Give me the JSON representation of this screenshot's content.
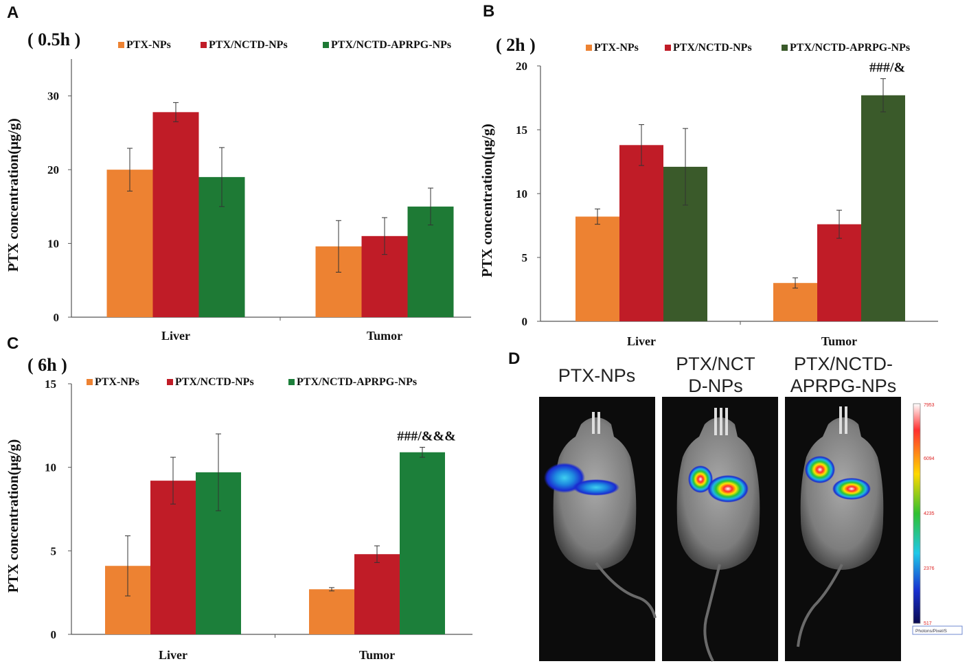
{
  "panels": [
    {
      "letter": "A"
    },
    {
      "letter": "B"
    },
    {
      "letter": "C"
    },
    {
      "letter": "D"
    }
  ],
  "legend_labels": [
    "PTX-NPs",
    "PTX/NCTD-NPs",
    "PTX/NCTD-APRPG-NPs"
  ],
  "colors": {
    "orange": "#ED8232",
    "red": "#C01C27",
    "green_a": "#1E7A35",
    "green_b": "#3A5A2A",
    "green_c": "#1C7F3A",
    "axis": "#555555",
    "text": "#111111"
  },
  "chart_data": [
    {
      "type": "bar",
      "panel": "A",
      "title": "( 0.5h )",
      "ylabel": "PTX concentration(μg/g)",
      "xlabel": "",
      "categories": [
        "Liver",
        "Tumor"
      ],
      "ylim": [
        0,
        35
      ],
      "yticks": [
        0,
        10,
        20,
        30
      ],
      "series": [
        {
          "name": "PTX-NPs",
          "values": [
            20,
            9.6
          ],
          "errors": [
            2.9,
            3.5
          ]
        },
        {
          "name": "PTX/NCTD-NPs",
          "values": [
            27.8,
            11
          ],
          "errors": [
            1.3,
            2.5
          ]
        },
        {
          "name": "PTX/NCTD-APRPG-NPs",
          "values": [
            19,
            15
          ],
          "errors": [
            4,
            2.5
          ]
        }
      ],
      "annotations": []
    },
    {
      "type": "bar",
      "panel": "B",
      "title": "( 2h )",
      "ylabel": "PTX concentration(μg/g)",
      "xlabel": "",
      "categories": [
        "Liver",
        "Tumor"
      ],
      "ylim": [
        0,
        20
      ],
      "yticks": [
        0,
        5,
        10,
        15,
        20
      ],
      "series": [
        {
          "name": "PTX-NPs",
          "values": [
            8.2,
            3
          ],
          "errors": [
            0.6,
            0.4
          ]
        },
        {
          "name": "PTX/NCTD-NPs",
          "values": [
            13.8,
            7.6
          ],
          "errors": [
            1.6,
            1.1
          ]
        },
        {
          "name": "PTX/NCTD-APRPG-NPs",
          "values": [
            12.1,
            17.7
          ],
          "errors": [
            3,
            1.3
          ]
        }
      ],
      "annotations": [
        {
          "text": "###/&",
          "category": "Tumor",
          "series": 2
        }
      ]
    },
    {
      "type": "bar",
      "panel": "C",
      "title": "( 6h )",
      "ylabel": "PTX concentration(μg/g)",
      "xlabel": "",
      "categories": [
        "Liver",
        "Tumor"
      ],
      "ylim": [
        0,
        15
      ],
      "yticks": [
        0,
        5,
        10,
        15
      ],
      "series": [
        {
          "name": "PTX-NPs",
          "values": [
            4.1,
            2.7
          ],
          "errors": [
            1.8,
            0.1
          ]
        },
        {
          "name": "PTX/NCTD-NPs",
          "values": [
            9.2,
            4.8
          ],
          "errors": [
            1.4,
            0.5
          ]
        },
        {
          "name": "PTX/NCTD-APRPG-NPs",
          "values": [
            9.7,
            10.9
          ],
          "errors": [
            2.3,
            0.3
          ]
        }
      ],
      "annotations": [
        {
          "text": "###/&&&",
          "category": "Tumor",
          "series": 2
        }
      ]
    }
  ],
  "imaging": {
    "titles": [
      [
        "PTX-NPs"
      ],
      [
        "PTX/NCT",
        "D-NPs"
      ],
      [
        "PTX/NCTD-",
        "APRPG-NPs"
      ]
    ],
    "scale_ticks": [
      "7953",
      "6094",
      "4235",
      "2376",
      "517"
    ],
    "scale_unit": "Photons/Pixel/S"
  }
}
